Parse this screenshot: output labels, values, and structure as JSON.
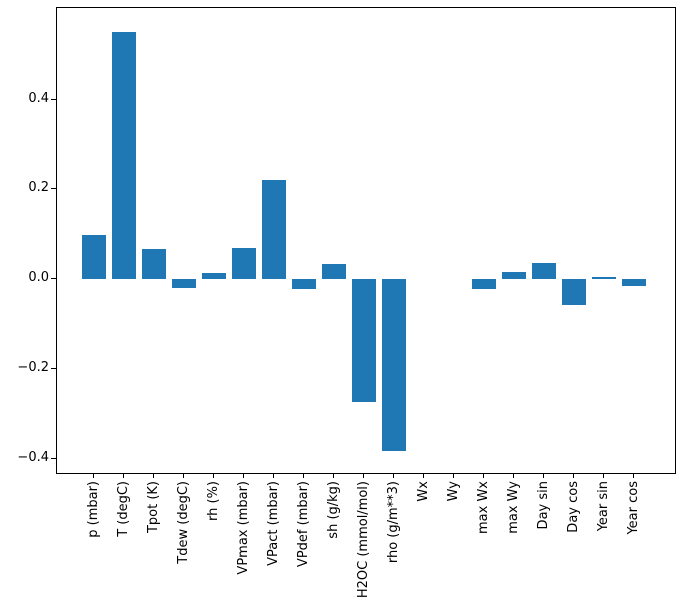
{
  "figure": {
    "background_color": "#ffffff",
    "axes_edge_color": "#000000",
    "text_color": "#000000"
  },
  "chart_data": {
    "type": "bar",
    "title": "",
    "xlabel": "",
    "ylabel": "",
    "grid": false,
    "legend_position": "none",
    "bar_color": "#1f77b4",
    "categories": [
      "p (mbar)",
      "T (degC)",
      "Tpot (K)",
      "Tdew (degC)",
      "rh (%)",
      "VPmax (mbar)",
      "VPact (mbar)",
      "VPdef (mbar)",
      "sh (g/kg)",
      "H2OC (mmol/mol)",
      "rho (g/m**3)",
      "Wx",
      "Wy",
      "max Wx",
      "max Wy",
      "Day sin",
      "Day cos",
      "Year sin",
      "Year cos"
    ],
    "values": [
      0.098,
      0.551,
      0.066,
      -0.02,
      0.013,
      0.07,
      0.221,
      -0.023,
      0.033,
      -0.274,
      -0.383,
      0.0,
      0.0,
      -0.021,
      0.016,
      0.035,
      -0.058,
      0.004,
      -0.016
    ],
    "ylim": [
      -0.432,
      0.604
    ],
    "yticks": [
      -0.4,
      -0.2,
      0.0,
      0.2,
      0.4
    ],
    "ytick_labels": [
      "−0.4",
      "−0.2",
      "0.0",
      "0.2",
      "0.4"
    ]
  }
}
